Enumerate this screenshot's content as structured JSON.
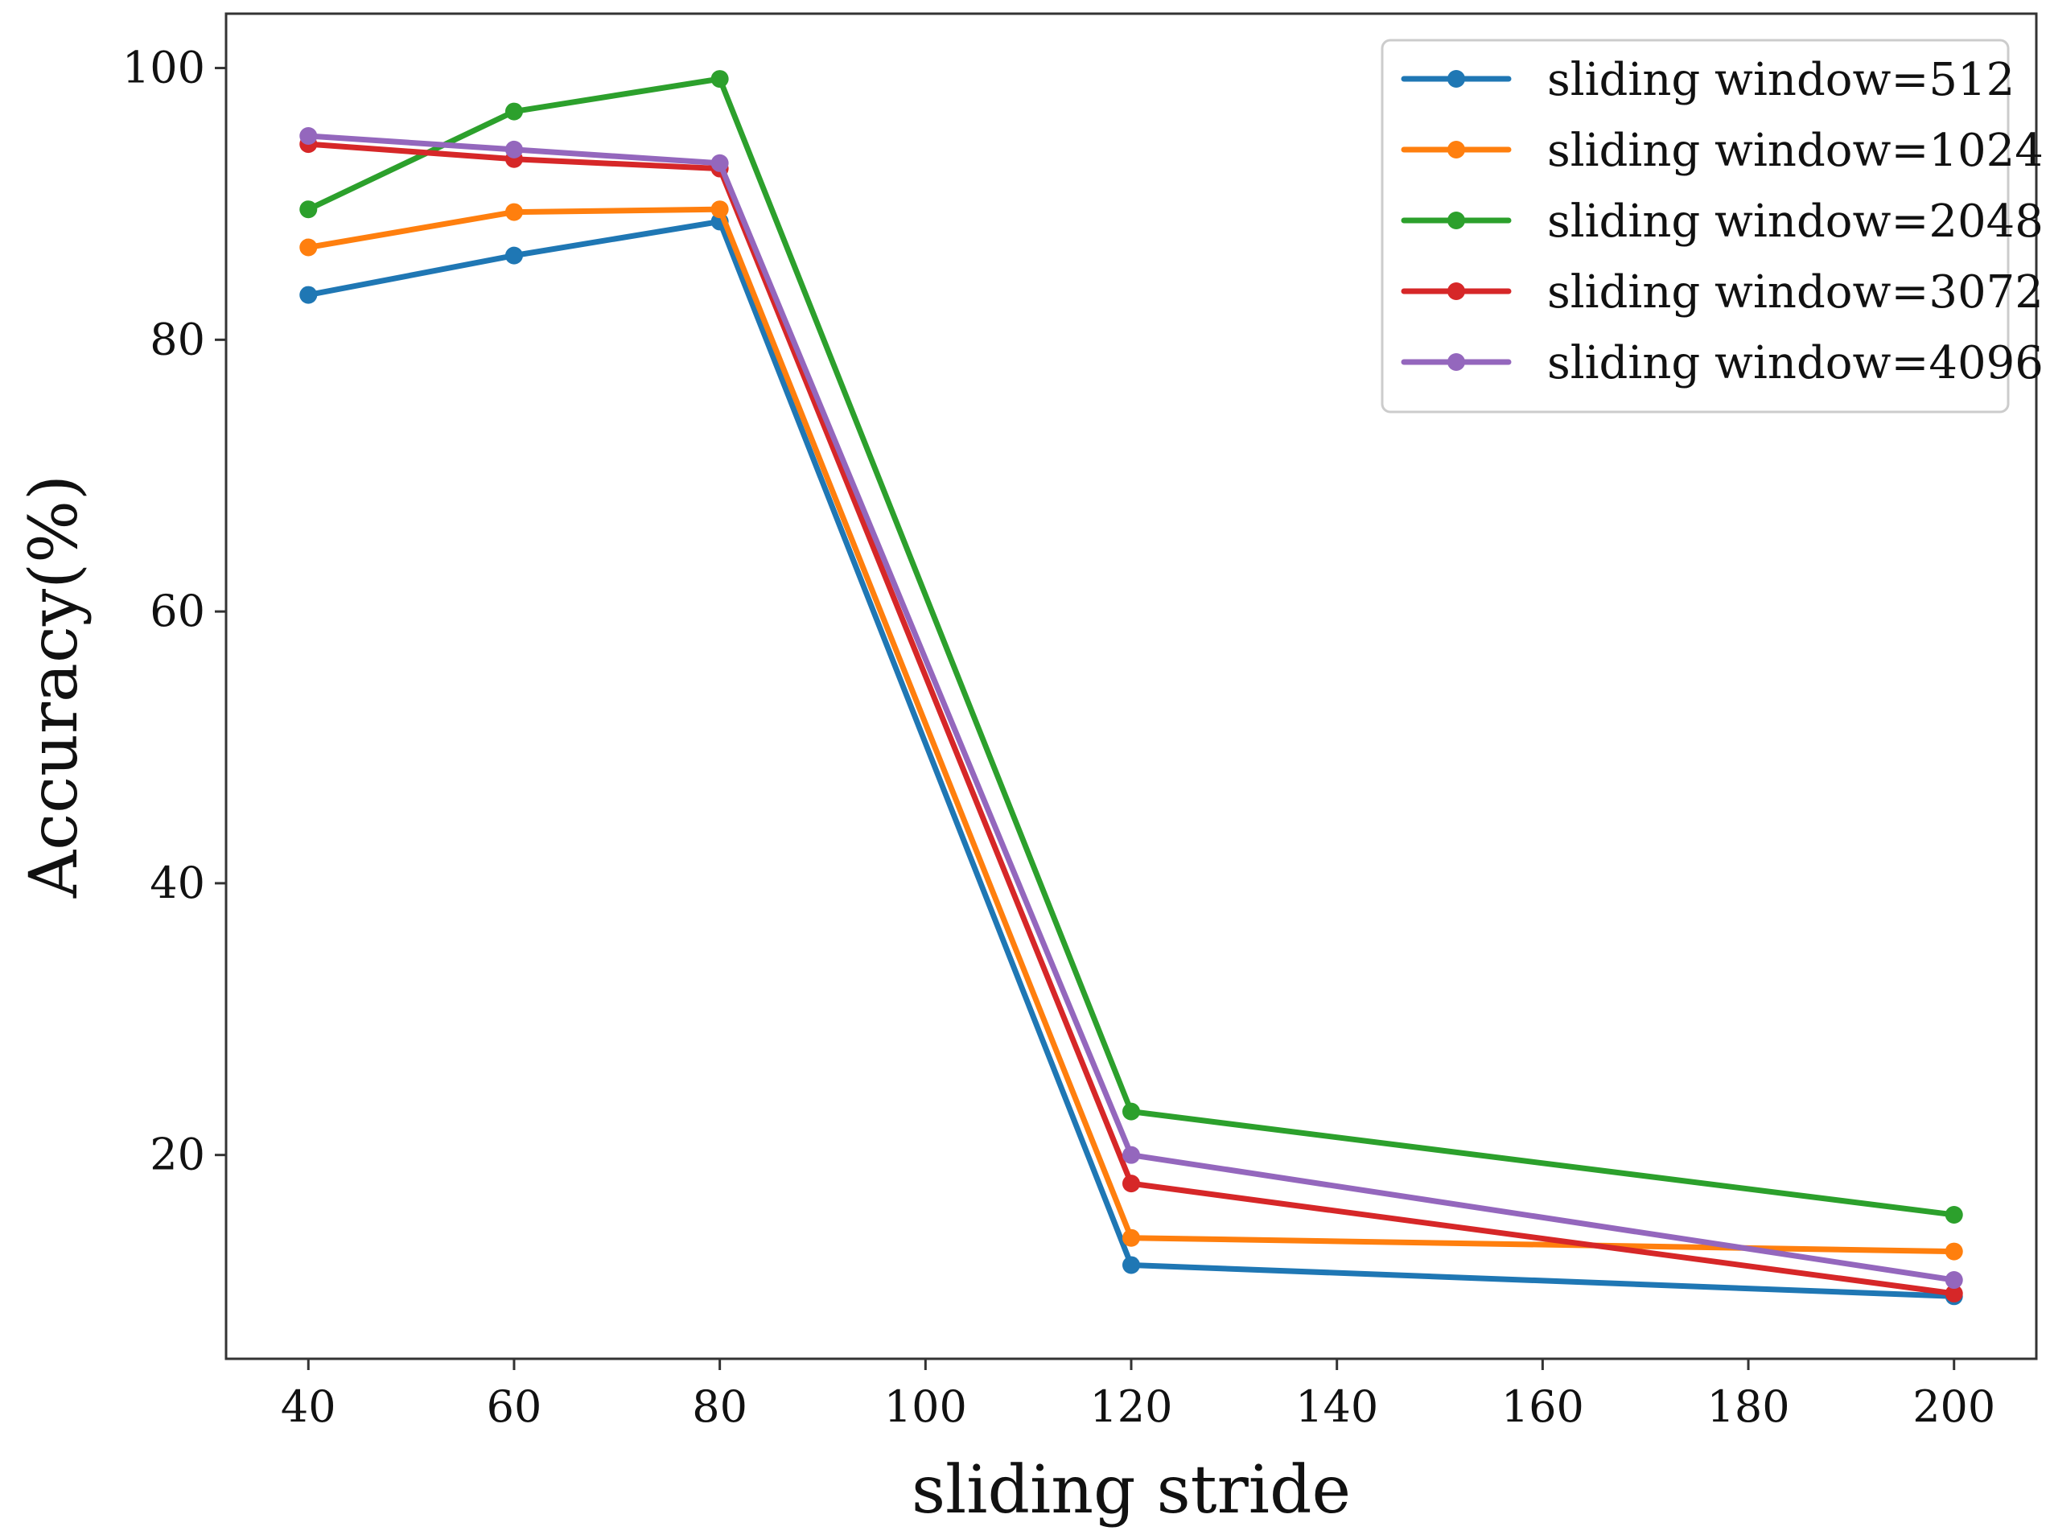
{
  "chart_data": {
    "type": "line",
    "title": "",
    "xlabel": "sliding stride",
    "ylabel": "Accuracy(%)",
    "x": [
      40,
      60,
      80,
      120,
      200
    ],
    "xlim": [
      32,
      208
    ],
    "ylim": [
      5,
      104
    ],
    "xticks": [
      40,
      60,
      80,
      100,
      120,
      140,
      160,
      180,
      200
    ],
    "yticks": [
      20,
      40,
      60,
      80,
      100
    ],
    "grid": false,
    "legend_position": "top-right",
    "series": [
      {
        "name": "sliding window=512",
        "color": "#1f77b4",
        "values": [
          83.3,
          86.2,
          88.7,
          11.9,
          9.6
        ]
      },
      {
        "name": "sliding window=1024",
        "color": "#ff7f0e",
        "values": [
          86.8,
          89.4,
          89.6,
          13.9,
          12.9
        ]
      },
      {
        "name": "sliding window=2048",
        "color": "#2ca02c",
        "values": [
          89.6,
          96.8,
          99.2,
          23.2,
          15.6
        ]
      },
      {
        "name": "sliding window=3072",
        "color": "#d62728",
        "values": [
          94.4,
          93.3,
          92.6,
          17.9,
          9.8
        ]
      },
      {
        "name": "sliding window=4096",
        "color": "#9467bd",
        "values": [
          95.0,
          94.0,
          93.0,
          20.0,
          10.8
        ]
      }
    ]
  }
}
